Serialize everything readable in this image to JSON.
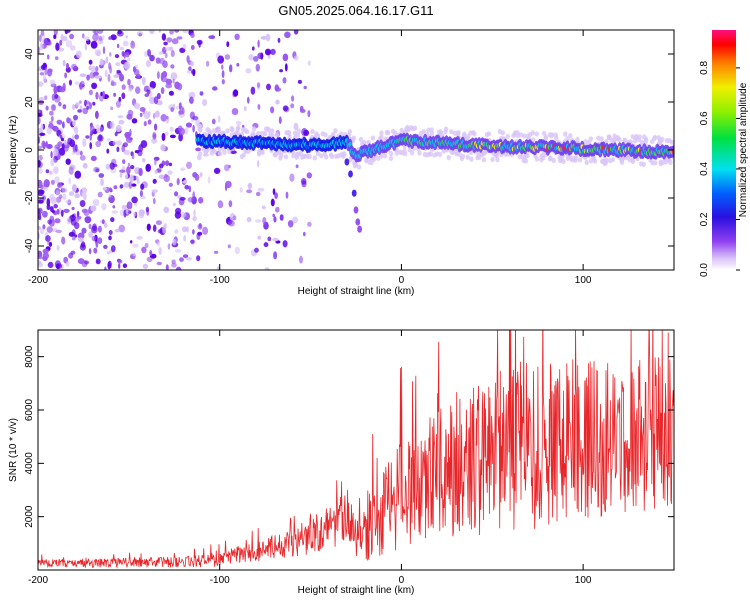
{
  "title": "GN05.2025.064.16.17.G11",
  "chart_data": [
    {
      "type": "heatmap",
      "name": "spectrogram",
      "xlabel": "Height of straight line (km)",
      "ylabel": "Frequency (Hz)",
      "xlim": [
        -200,
        150
      ],
      "ylim": [
        -50,
        50
      ],
      "x_ticks": [
        -200,
        -100,
        0,
        100
      ],
      "x_tick_labels": [
        "-200",
        "-100",
        "0",
        "100"
      ],
      "y_ticks": [
        -40,
        -20,
        0,
        20,
        40
      ],
      "y_tick_labels": [
        "-40",
        "-20",
        "0",
        "20",
        "40"
      ],
      "ridge": {
        "description": "dominant frequency trace",
        "x": [
          -112,
          -80,
          -50,
          -30,
          -25,
          0,
          40,
          80,
          120,
          150
        ],
        "y": [
          4,
          3,
          2,
          3,
          -2,
          4,
          2,
          1,
          0,
          -1
        ]
      },
      "noise_region_x": [
        -200,
        -110
      ],
      "tail": {
        "x": [
          -30,
          -28,
          -26,
          -25,
          -24,
          -23
        ],
        "y": [
          -5,
          -10,
          -18,
          -25,
          -30,
          -33
        ]
      },
      "colorbar": {
        "label": "Normalized spectral amplitude",
        "range": [
          0,
          0.95
        ],
        "ticks": [
          0.0,
          0.2,
          0.4,
          0.6,
          0.8
        ],
        "tick_labels": [
          "0.0",
          "0.2",
          "0.4",
          "0.6",
          "0.8"
        ]
      }
    },
    {
      "type": "line",
      "name": "snr",
      "xlabel": "Height of straight line (km)",
      "ylabel": "SNR (10 * v/v)",
      "xlim": [
        -200,
        150
      ],
      "ylim": [
        0,
        9000
      ],
      "x_ticks": [
        -200,
        -100,
        0,
        100
      ],
      "x_tick_labels": [
        "-200",
        "-100",
        "0",
        "100"
      ],
      "y_ticks": [
        2000,
        4000,
        6000,
        8000
      ],
      "y_tick_labels": [
        "2000",
        "4000",
        "6000",
        "8000"
      ],
      "color": "#e8262a",
      "envelope": {
        "x": [
          -200,
          -120,
          -100,
          -80,
          -60,
          -40,
          -30,
          -25,
          -20,
          -10,
          0,
          20,
          40,
          60,
          80,
          100,
          120,
          150
        ],
        "mean": [
          250,
          300,
          400,
          700,
          1000,
          1500,
          2200,
          1200,
          1600,
          2200,
          3000,
          3800,
          4200,
          4600,
          4700,
          4900,
          5000,
          5200
        ],
        "amplitude": [
          150,
          200,
          300,
          400,
          500,
          900,
          1000,
          700,
          1300,
          1800,
          2200,
          2500,
          3000,
          3200,
          3200,
          3000,
          3000,
          2800
        ]
      }
    }
  ]
}
